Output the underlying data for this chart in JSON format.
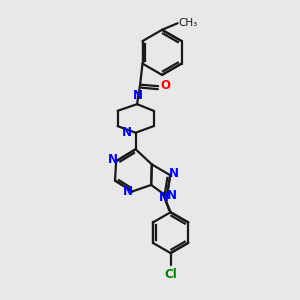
{
  "bg_color": "#e8e8e8",
  "bond_color": "#1a1a1a",
  "N_color": "#0000ff",
  "O_color": "#ff0000",
  "Cl_color": "#008000",
  "lw": 1.6,
  "fs": 8.5,
  "xlim": [
    0.05,
    0.75
  ],
  "ylim": [
    0.02,
    1.0
  ]
}
